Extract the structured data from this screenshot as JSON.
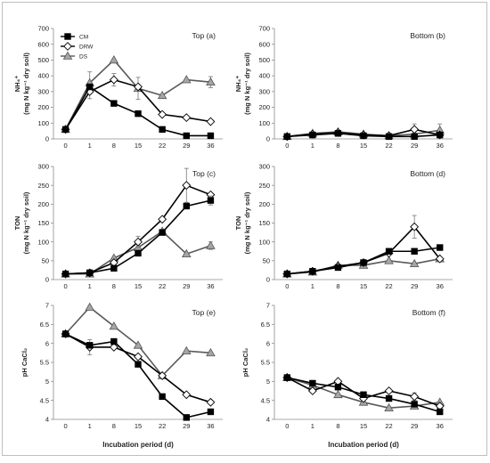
{
  "x_axis_label": "Incubation period (d)",
  "legend": [
    {
      "name": "CM",
      "marker": "square",
      "fill": "#000000"
    },
    {
      "name": "DRW",
      "marker": "diamond",
      "fill": "#ffffff"
    },
    {
      "name": "DS",
      "marker": "triangle",
      "fill": "#a6a6a6"
    }
  ],
  "chart_data": [
    {
      "type": "line",
      "title": "Top (a)",
      "ylabel": [
        "NH₄⁺",
        "(mg N kg⁻¹ dry soil)"
      ],
      "x": [
        0,
        1,
        8,
        15,
        22,
        29,
        36
      ],
      "ylim": [
        0,
        700
      ],
      "yticks": [
        0,
        100,
        200,
        300,
        400,
        500,
        600,
        700
      ],
      "legend": true,
      "series": [
        {
          "name": "CM",
          "values": [
            60,
            330,
            225,
            160,
            60,
            20,
            20
          ],
          "errors": [
            0,
            0,
            0,
            0,
            0,
            0,
            0
          ]
        },
        {
          "name": "DRW",
          "values": [
            60,
            300,
            375,
            330,
            155,
            135,
            110
          ],
          "errors": [
            0,
            45,
            40,
            0,
            0,
            0,
            0
          ]
        },
        {
          "name": "DS",
          "values": [
            60,
            355,
            500,
            320,
            275,
            375,
            360
          ],
          "errors": [
            0,
            70,
            0,
            70,
            0,
            0,
            35
          ]
        }
      ]
    },
    {
      "type": "line",
      "title": "Bottom (b)",
      "ylabel": [
        "NH₄⁺",
        "(mg N kg⁻¹ dry soil)"
      ],
      "x": [
        0,
        1,
        8,
        15,
        22,
        29,
        36
      ],
      "ylim": [
        0,
        700
      ],
      "yticks": [
        0,
        100,
        200,
        300,
        400,
        500,
        600,
        700
      ],
      "legend": false,
      "series": [
        {
          "name": "CM",
          "values": [
            15,
            25,
            35,
            20,
            15,
            15,
            25
          ],
          "errors": [
            0,
            0,
            0,
            0,
            0,
            0,
            0
          ]
        },
        {
          "name": "DRW",
          "values": [
            15,
            30,
            40,
            25,
            20,
            60,
            25
          ],
          "errors": [
            0,
            0,
            0,
            0,
            0,
            35,
            0
          ]
        },
        {
          "name": "DS",
          "values": [
            15,
            35,
            45,
            30,
            20,
            30,
            55
          ],
          "errors": [
            0,
            0,
            0,
            0,
            0,
            0,
            40
          ]
        }
      ]
    },
    {
      "type": "line",
      "title": "Top (c)",
      "ylabel": [
        "TON",
        "(mg N kg⁻¹ dry soil)"
      ],
      "x": [
        0,
        1,
        8,
        15,
        22,
        29,
        36
      ],
      "ylim": [
        0,
        300
      ],
      "yticks": [
        0,
        50,
        100,
        150,
        200,
        250,
        300
      ],
      "legend": false,
      "series": [
        {
          "name": "CM",
          "values": [
            15,
            18,
            30,
            70,
            125,
            195,
            210
          ],
          "errors": [
            0,
            0,
            0,
            0,
            0,
            0,
            12
          ]
        },
        {
          "name": "DRW",
          "values": [
            15,
            18,
            45,
            100,
            160,
            250,
            225
          ],
          "errors": [
            0,
            0,
            0,
            15,
            0,
            45,
            0
          ]
        },
        {
          "name": "DS",
          "values": [
            15,
            15,
            57,
            85,
            128,
            68,
            90
          ],
          "errors": [
            0,
            0,
            0,
            0,
            0,
            0,
            10
          ]
        }
      ]
    },
    {
      "type": "line",
      "title": "Bottom (d)",
      "ylabel": [
        "TON",
        "(mg N kg⁻¹ dry soil)"
      ],
      "x": [
        0,
        1,
        8,
        15,
        22,
        29,
        36
      ],
      "ylim": [
        0,
        300
      ],
      "yticks": [
        0,
        50,
        100,
        150,
        200,
        250,
        300
      ],
      "legend": false,
      "series": [
        {
          "name": "CM",
          "values": [
            15,
            22,
            32,
            45,
            75,
            75,
            85
          ],
          "errors": [
            0,
            0,
            0,
            0,
            0,
            0,
            0
          ]
        },
        {
          "name": "DRW",
          "values": [
            15,
            22,
            35,
            45,
            70,
            140,
            55
          ],
          "errors": [
            0,
            0,
            0,
            0,
            0,
            30,
            0
          ]
        },
        {
          "name": "DS",
          "values": [
            15,
            20,
            38,
            38,
            50,
            42,
            55
          ],
          "errors": [
            0,
            0,
            0,
            0,
            0,
            0,
            0
          ]
        }
      ]
    },
    {
      "type": "line",
      "title": "Top (e)",
      "ylabel": [
        "pH CaCl₂"
      ],
      "x": [
        0,
        1,
        8,
        15,
        22,
        29,
        36
      ],
      "ylim": [
        4,
        7
      ],
      "yticks": [
        4,
        4.5,
        5,
        5.5,
        6,
        6.5,
        7
      ],
      "legend": false,
      "series": [
        {
          "name": "CM",
          "values": [
            6.25,
            5.95,
            6.05,
            5.45,
            4.6,
            4.05,
            4.2
          ],
          "errors": [
            0,
            0,
            0,
            0,
            0,
            0,
            0
          ]
        },
        {
          "name": "DRW",
          "values": [
            6.25,
            5.9,
            5.9,
            5.65,
            5.15,
            4.65,
            4.45
          ],
          "errors": [
            0,
            0.2,
            0,
            0,
            0,
            0,
            0
          ]
        },
        {
          "name": "DS",
          "values": [
            6.25,
            6.95,
            6.45,
            5.95,
            5.15,
            5.8,
            5.75
          ],
          "errors": [
            0,
            0,
            0,
            0,
            0,
            0,
            0
          ]
        }
      ]
    },
    {
      "type": "line",
      "title": "Bottom (f)",
      "ylabel": [
        "pH CaCl₂"
      ],
      "x": [
        0,
        1,
        8,
        15,
        22,
        29,
        36
      ],
      "ylim": [
        4,
        7
      ],
      "yticks": [
        4,
        4.5,
        5,
        5.5,
        6,
        6.5,
        7
      ],
      "legend": false,
      "series": [
        {
          "name": "CM",
          "values": [
            5.1,
            4.95,
            4.85,
            4.65,
            4.55,
            4.4,
            4.2
          ],
          "errors": [
            0,
            0,
            0,
            0,
            0,
            0,
            0
          ]
        },
        {
          "name": "DRW",
          "values": [
            5.1,
            4.75,
            5.0,
            4.55,
            4.75,
            4.6,
            4.35
          ],
          "errors": [
            0,
            0,
            0,
            0,
            0,
            0.1,
            0
          ]
        },
        {
          "name": "DS",
          "values": [
            5.1,
            4.9,
            4.65,
            4.45,
            4.3,
            4.35,
            4.45
          ],
          "errors": [
            0,
            0,
            0,
            0,
            0,
            0,
            0
          ]
        }
      ]
    }
  ]
}
